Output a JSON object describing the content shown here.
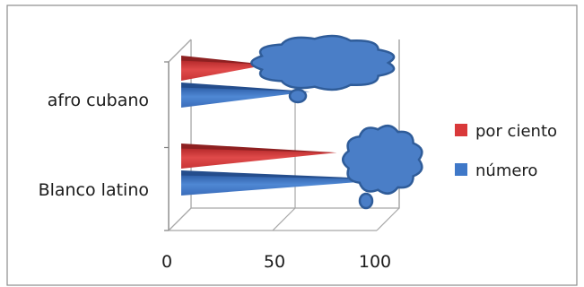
{
  "chart_data": {
    "type": "bar",
    "orientation": "horizontal",
    "style": "3d-cone",
    "categories": [
      "afro cubano",
      "Blanco latino"
    ],
    "series": [
      {
        "name": "por ciento",
        "values": [
          37,
          70
        ],
        "color": "#d9393a"
      },
      {
        "name": "número",
        "values": [
          57,
          97
        ],
        "color": "#3f78c8"
      }
    ],
    "xlim": [
      0,
      100
    ],
    "xticks": [
      "0",
      "50",
      "100"
    ],
    "grid": true,
    "legend_position": "right",
    "annotations": [
      "callout-cloud",
      "callout-cloud"
    ]
  }
}
